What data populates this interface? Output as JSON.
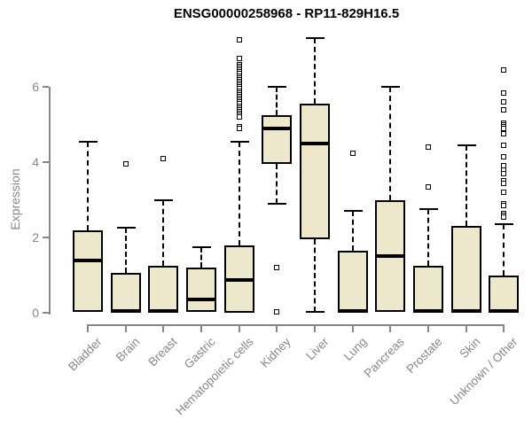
{
  "title": "ENSG00000258968 - RP11-829H16.5",
  "chart_data": {
    "type": "boxplot",
    "title": "ENSG00000258968 - RP11-829H16.5",
    "xlabel": "",
    "ylabel": "Expression",
    "yticks": [
      0,
      2,
      4,
      6
    ],
    "ylim": [
      0,
      7.4
    ],
    "grid": false,
    "legend": "none",
    "colors": {
      "box_fill": "#EDE7CC",
      "box_border": "#000000",
      "median": "#000000",
      "axis": "#878787",
      "title": "#000000"
    },
    "categories": [
      "Bladder",
      "Brain",
      "Breast",
      "Gastric",
      "Hematopoietic cells",
      "Kidney",
      "Liver",
      "Lung",
      "Pancreas",
      "Prostate",
      "Skin",
      "Unknown / Other"
    ],
    "series": [
      {
        "name": "Bladder",
        "min": 0.02,
        "q1": 0.02,
        "median": 1.4,
        "q3": 2.2,
        "max": 4.55,
        "outliers": []
      },
      {
        "name": "Brain",
        "min": 0.0,
        "q1": 0.0,
        "median": 0.05,
        "q3": 1.05,
        "max": 2.25,
        "outliers": [
          3.95
        ]
      },
      {
        "name": "Breast",
        "min": 0.0,
        "q1": 0.0,
        "median": 0.05,
        "q3": 1.25,
        "max": 3.0,
        "outliers": [
          4.1
        ]
      },
      {
        "name": "Gastric",
        "min": 0.02,
        "q1": 0.02,
        "median": 0.36,
        "q3": 1.2,
        "max": 1.75,
        "outliers": []
      },
      {
        "name": "Hematopoietic cells",
        "min": 0.0,
        "q1": 0.0,
        "median": 0.86,
        "q3": 1.8,
        "max": 4.55,
        "outliers": [
          7.25,
          6.75,
          6.6,
          6.55,
          6.5,
          6.45,
          6.4,
          6.35,
          6.3,
          6.25,
          6.2,
          6.15,
          6.1,
          6.05,
          6.0,
          5.95,
          5.9,
          5.85,
          5.8,
          5.75,
          5.7,
          5.65,
          5.6,
          5.55,
          5.5,
          5.45,
          5.4,
          5.35,
          5.3,
          5.25,
          5.2,
          4.95,
          4.9
        ]
      },
      {
        "name": "Kidney",
        "min": 2.9,
        "q1": 3.95,
        "median": 4.9,
        "q3": 5.25,
        "max": 6.0,
        "outliers": [
          1.2,
          0.03
        ]
      },
      {
        "name": "Liver",
        "min": 0.02,
        "q1": 1.95,
        "median": 4.5,
        "q3": 5.55,
        "max": 7.3,
        "outliers": []
      },
      {
        "name": "Lung",
        "min": 0.0,
        "q1": 0.0,
        "median": 0.05,
        "q3": 1.65,
        "max": 2.7,
        "outliers": [
          4.25
        ]
      },
      {
        "name": "Pancreas",
        "min": 0.02,
        "q1": 0.02,
        "median": 1.5,
        "q3": 3.0,
        "max": 6.0,
        "outliers": []
      },
      {
        "name": "Prostate",
        "min": 0.0,
        "q1": 0.0,
        "median": 0.05,
        "q3": 1.25,
        "max": 2.75,
        "outliers": [
          4.4,
          3.35
        ]
      },
      {
        "name": "Skin",
        "min": 0.0,
        "q1": 0.0,
        "median": 0.05,
        "q3": 2.3,
        "max": 4.45,
        "outliers": []
      },
      {
        "name": "Unknown / Other",
        "min": 0.0,
        "q1": 0.0,
        "median": 0.05,
        "q3": 1.0,
        "max": 2.35,
        "outliers": [
          6.45,
          5.85,
          5.6,
          5.4,
          5.05,
          5.0,
          4.95,
          4.9,
          4.75,
          4.45,
          4.15,
          3.9,
          3.8,
          3.7,
          3.5,
          3.45,
          3.2,
          2.9,
          2.85,
          2.65,
          2.6,
          2.55
        ]
      }
    ]
  }
}
